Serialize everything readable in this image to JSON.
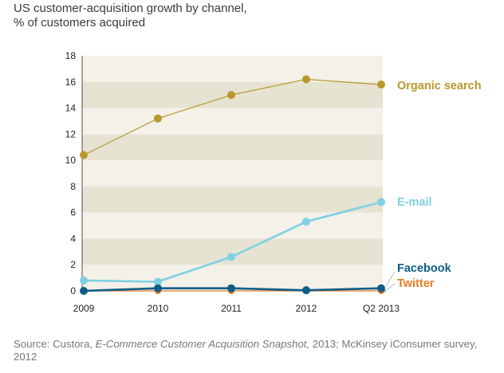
{
  "title": {
    "line1": "US customer-acquisition growth by channel,",
    "line2": "% of customers acquired"
  },
  "source": {
    "prefix": "Source: Custora, ",
    "italic": "E-Commerce Customer Acquisition Snapshot,",
    "suffix": " 2013; McKinsey iConsumer survey, 2012"
  },
  "colors": {
    "band_light": "#f3f1e8",
    "band_dark": "#e6e3d3",
    "axis": "#222222",
    "tick_label": "#222222"
  },
  "chart_data": {
    "type": "line",
    "title": "US customer-acquisition growth by channel, % of customers acquired",
    "xlabel": "",
    "ylabel": "",
    "categories": [
      "2009",
      "2010",
      "2011",
      "2012",
      "Q2 2013"
    ],
    "ylim": [
      0,
      18
    ],
    "yticks": [
      0,
      2,
      4,
      6,
      8,
      10,
      12,
      14,
      16,
      18
    ],
    "grid": "alternating horizontal bands",
    "legend": "inline labels at right of each line",
    "series": [
      {
        "name": "Organic search",
        "color": "#b8972e",
        "line_width": "thin",
        "values": [
          10.4,
          13.2,
          15.0,
          16.2,
          15.8
        ]
      },
      {
        "name": "E-mail",
        "color": "#7fd0e4",
        "line_width": "thick",
        "values": [
          0.8,
          0.7,
          2.6,
          5.3,
          6.8
        ]
      },
      {
        "name": "Facebook",
        "color": "#0d5e86",
        "line_width": "thick",
        "values": [
          0.0,
          0.2,
          0.2,
          0.05,
          0.2
        ]
      },
      {
        "name": "Twitter",
        "color": "#e37b26",
        "line_width": "thin",
        "values": [
          0.0,
          0.0,
          0.0,
          0.0,
          0.0
        ]
      }
    ]
  }
}
